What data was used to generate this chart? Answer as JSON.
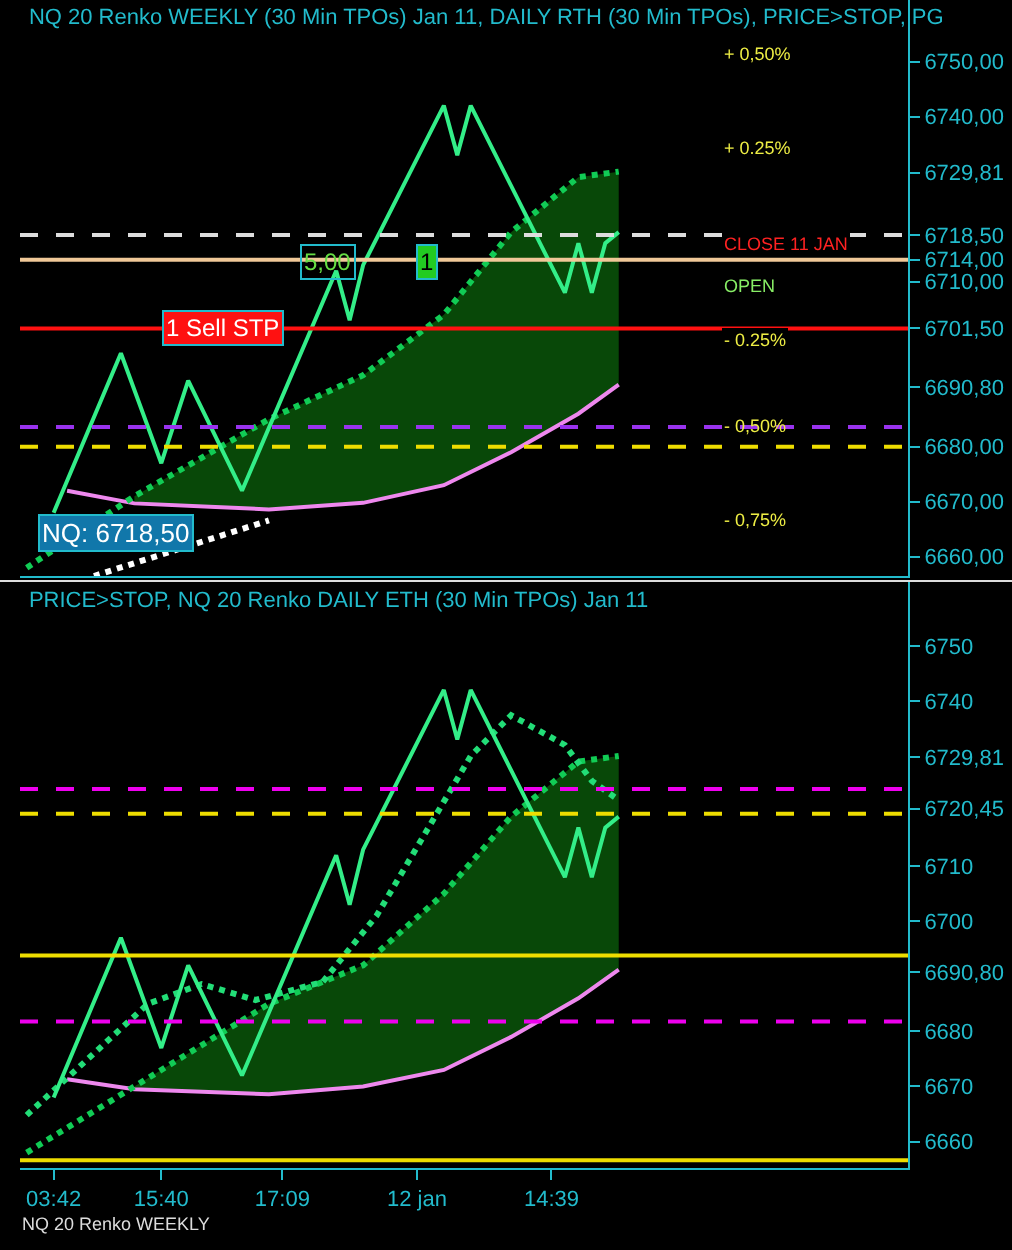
{
  "chart_data": [
    {
      "type": "line",
      "title": "NQ 20 Renko WEEKLY (30 Min TPOs) Jan 11, DAILY RTH (30 Min TPOs), PRICE>STOP, PG",
      "categories": [
        null,
        null,
        null,
        null,
        null,
        null,
        null,
        null,
        null,
        null,
        null,
        null,
        null,
        null,
        null,
        null,
        null,
        null,
        null,
        null,
        null,
        null,
        null,
        null,
        null,
        null,
        null,
        null,
        null,
        null,
        null,
        null,
        null,
        null,
        null,
        null,
        null,
        null,
        null,
        null,
        null,
        null,
        null,
        null,
        null,
        null,
        null,
        null,
        null,
        null,
        null,
        null,
        null,
        null,
        null,
        null,
        null,
        null,
        null,
        null,
        null,
        null,
        null,
        null,
        null,
        null
      ],
      "series": [
        {
          "type": "line",
          "color": "#ee88ee",
          "line_style": "solid",
          "values": [
            null,
            null,
            null,
            6672,
            null,
            null,
            null,
            null,
            6669.7,
            null,
            null,
            null,
            null,
            null,
            null,
            null,
            null,
            null,
            6668.6,
            null,
            null,
            null,
            null,
            null,
            null,
            6669.8,
            null,
            null,
            null,
            null,
            null,
            6673,
            null,
            null,
            null,
            null,
            6679,
            null,
            null,
            null,
            null,
            6686,
            null,
            null,
            6691.3,
            null,
            null,
            null,
            null,
            null,
            null,
            null,
            null,
            null,
            null,
            null,
            null,
            null,
            null,
            null,
            null,
            null,
            null,
            null,
            null,
            null
          ]
        },
        {
          "type": "line",
          "color": "#11cc55",
          "line_style": "dotted",
          "values": [
            6658,
            null,
            null,
            null,
            null,
            null,
            null,
            null,
            6671,
            null,
            null,
            null,
            null,
            null,
            null,
            null,
            null,
            null,
            6685,
            null,
            null,
            null,
            null,
            null,
            null,
            6693,
            null,
            null,
            null,
            null,
            null,
            6704,
            null,
            null,
            null,
            null,
            6719,
            null,
            null,
            null,
            null,
            6729,
            null,
            null,
            6730,
            null,
            null,
            null,
            null,
            null,
            null,
            null,
            null,
            null,
            null,
            null,
            null,
            null,
            null,
            null,
            null,
            null,
            null,
            null,
            null,
            null
          ],
          "lower": [
            null,
            null,
            null,
            null,
            null,
            null,
            null,
            null,
            6669.7,
            null,
            null,
            null,
            null,
            null,
            null,
            null,
            null,
            null,
            6668.6,
            null,
            null,
            null,
            null,
            null,
            null,
            6669.8,
            null,
            null,
            null,
            null,
            null,
            6673,
            null,
            null,
            null,
            null,
            6679,
            null,
            null,
            null,
            null,
            6686,
            null,
            null,
            6691.3,
            null,
            null,
            null,
            null,
            null,
            null,
            null,
            null,
            null,
            null,
            null,
            null,
            null,
            null,
            null,
            null,
            null,
            null,
            null,
            null,
            null
          ],
          "upper": [
            null,
            null,
            null,
            null,
            null,
            null,
            null,
            null,
            6671,
            null,
            null,
            null,
            null,
            null,
            null,
            null,
            null,
            null,
            6685,
            null,
            null,
            null,
            null,
            null,
            null,
            6693,
            null,
            null,
            null,
            null,
            null,
            6704,
            null,
            null,
            null,
            null,
            6719,
            null,
            null,
            null,
            null,
            6729,
            null,
            null,
            6730,
            null,
            null,
            null,
            null,
            null,
            null,
            null,
            null,
            null,
            null,
            null,
            null,
            null,
            null,
            null,
            null,
            null,
            null,
            null,
            null,
            null
          ]
        },
        {
          "type": "line",
          "color": "#ffffff",
          "line_style": "dotted",
          "values": [
            null,
            null,
            null,
            null,
            null,
            6656.5,
            null,
            null,
            null,
            null,
            null,
            null,
            null,
            null,
            null,
            null,
            null,
            null,
            6666.6,
            null,
            null,
            null,
            null,
            null,
            null,
            null,
            null,
            null,
            null,
            null,
            null,
            null,
            null,
            null,
            null,
            null,
            null,
            null,
            null,
            null,
            null,
            null,
            null,
            null,
            null,
            null,
            null,
            null,
            null,
            null,
            null,
            null,
            null,
            null,
            null,
            null,
            null,
            null,
            null,
            null,
            null,
            null,
            null,
            null,
            null,
            null
          ]
        },
        {
          "type": "line",
          "color": "#33ee88",
          "line_style": "solid",
          "values": [
            null,
            null,
            6668,
            null,
            null,
            null,
            null,
            6697,
            null,
            null,
            6677,
            null,
            6692,
            null,
            null,
            null,
            6672,
            null,
            null,
            null,
            null,
            null,
            null,
            6712,
            6703,
            6713,
            null,
            null,
            null,
            null,
            null,
            6742,
            6733,
            6742,
            null,
            null,
            null,
            null,
            null,
            null,
            6708,
            6717,
            6708,
            6717,
            6719,
            null,
            null,
            null,
            null,
            null,
            null,
            null,
            null,
            null,
            null,
            null,
            null,
            null,
            null,
            null,
            null,
            null,
            null,
            null,
            null,
            null
          ]
        }
      ],
      "ylim": [
        6656.5,
        6761.2
      ],
      "yticks": [
        {
          "value": 6660,
          "label": "6660,00"
        },
        {
          "value": 6670,
          "label": "6670,00"
        },
        {
          "value": 6680,
          "label": "6680,00"
        },
        {
          "value": 6690.8,
          "label": "6690,80"
        },
        {
          "value": 6701.5,
          "label": "6701,50"
        },
        {
          "value": 6710,
          "label": "6710,00"
        },
        {
          "value": 6714,
          "label": "6714,00"
        },
        {
          "value": 6718.5,
          "label": "6718,50"
        },
        {
          "value": 6729.81,
          "label": "6729,81"
        },
        {
          "value": 6740,
          "label": "6740,00"
        },
        {
          "value": 6750,
          "label": "6750,00"
        }
      ],
      "ref_lines": [
        {
          "axis": "y",
          "value": 6718.5,
          "color": "#dddddd",
          "line_style": "dashed"
        },
        {
          "axis": "y",
          "value": 6714,
          "color": "#f0c898",
          "line_style": "solid"
        },
        {
          "axis": "y",
          "value": 6701.5,
          "color": "#ff1111",
          "line_style": "solid",
          "label": "1 Sell STP"
        },
        {
          "axis": "y",
          "value": 6683.6,
          "color": "#9933ee",
          "line_style": "dashed"
        },
        {
          "axis": "y",
          "value": 6680,
          "color": "#eedd00",
          "line_style": "dashed"
        }
      ],
      "annotations": [
        "+ 0,50%",
        "+ 0.25%",
        "CLOSE 11 JAN",
        "OPEN",
        "- 0.25%",
        "- 0,50%",
        "- 0,75%",
        "NQ: 6718,50",
        "5,00",
        "1"
      ],
      "grid": false,
      "marker": "none",
      "tick_labels": "y"
    },
    {
      "type": "line",
      "title": "PRICE>STOP, NQ 20 Renko DAILY ETH (30 Min TPOs) Jan 11",
      "categories": [
        null,
        null,
        "03:42",
        null,
        null,
        null,
        null,
        null,
        null,
        null,
        "15:40",
        null,
        null,
        null,
        null,
        null,
        null,
        null,
        null,
        "17:09",
        null,
        null,
        null,
        null,
        null,
        null,
        null,
        null,
        null,
        "12 jan",
        null,
        null,
        null,
        null,
        null,
        null,
        null,
        null,
        null,
        "14:39",
        null,
        null,
        null,
        null,
        null,
        null,
        null,
        null,
        null,
        null,
        null,
        null,
        null,
        null,
        null,
        null,
        null,
        null,
        null,
        null,
        null,
        null,
        null,
        null,
        null,
        null
      ],
      "series": [
        {
          "type": "line",
          "color": "#ee88ee",
          "line_style": "solid",
          "values": [
            null,
            null,
            null,
            6671.3,
            null,
            null,
            null,
            null,
            6669.5,
            null,
            null,
            null,
            null,
            null,
            null,
            null,
            null,
            null,
            6668.6,
            null,
            null,
            null,
            null,
            null,
            null,
            6670,
            null,
            null,
            null,
            null,
            null,
            6673,
            null,
            null,
            null,
            null,
            6679,
            null,
            null,
            null,
            null,
            6686,
            null,
            null,
            6691.2,
            null,
            null,
            null,
            null,
            null,
            null,
            null,
            null,
            null,
            null,
            null,
            null,
            null,
            null,
            null,
            null,
            null,
            null,
            null,
            null,
            null
          ]
        },
        {
          "type": "line",
          "color": "#11cc55",
          "line_style": "dotted",
          "values": [
            6658,
            null,
            null,
            null,
            null,
            null,
            null,
            null,
            6670,
            null,
            null,
            null,
            null,
            null,
            null,
            null,
            null,
            null,
            6685,
            null,
            null,
            null,
            null,
            null,
            null,
            6692,
            null,
            null,
            null,
            null,
            null,
            6705,
            null,
            null,
            null,
            null,
            6719,
            null,
            null,
            null,
            null,
            6729,
            null,
            null,
            6730,
            null,
            null,
            null,
            null,
            null,
            null,
            null,
            null,
            null,
            null,
            null,
            null,
            null,
            null,
            null,
            null,
            null,
            null,
            null,
            null,
            null
          ],
          "lower": [
            null,
            null,
            null,
            null,
            null,
            null,
            null,
            null,
            6669.5,
            null,
            null,
            null,
            null,
            null,
            null,
            null,
            null,
            null,
            6668.6,
            null,
            null,
            null,
            null,
            null,
            null,
            6670,
            null,
            null,
            null,
            null,
            null,
            6673,
            null,
            null,
            null,
            null,
            6679,
            null,
            null,
            null,
            null,
            6686,
            null,
            null,
            6691.2,
            null,
            null,
            null,
            null,
            null,
            null,
            null,
            null,
            null,
            null,
            null,
            null,
            null,
            null,
            null,
            null,
            null,
            null,
            null,
            null,
            null
          ],
          "upper": [
            null,
            null,
            null,
            null,
            null,
            null,
            null,
            null,
            6670,
            null,
            null,
            null,
            null,
            null,
            null,
            null,
            null,
            null,
            6685,
            null,
            null,
            null,
            null,
            null,
            null,
            6692,
            null,
            null,
            null,
            null,
            null,
            6705,
            null,
            null,
            null,
            null,
            6719,
            null,
            null,
            null,
            null,
            6729,
            null,
            null,
            6730,
            null,
            null,
            null,
            null,
            null,
            null,
            null,
            null,
            null,
            null,
            null,
            null,
            null,
            null,
            null,
            null,
            null,
            null,
            null,
            null,
            null
          ]
        },
        {
          "type": "line",
          "color": "#22dd77",
          "line_style": "dotted",
          "values": [
            6664.8,
            null,
            null,
            null,
            null,
            null,
            null,
            null,
            null,
            6685,
            null,
            null,
            null,
            6688.6,
            null,
            null,
            null,
            6685.7,
            null,
            null,
            null,
            null,
            6689,
            null,
            null,
            null,
            6701,
            null,
            null,
            null,
            null,
            null,
            null,
            6730,
            null,
            null,
            6737.4,
            null,
            null,
            null,
            6732,
            null,
            6725.5,
            null,
            6722,
            null,
            null,
            null,
            null,
            null,
            null,
            null,
            null,
            null,
            null,
            null,
            null,
            null,
            null,
            null,
            null,
            null,
            null,
            null,
            null,
            null
          ]
        },
        {
          "type": "line",
          "color": "#33ee88",
          "line_style": "solid",
          "values": [
            null,
            null,
            6668,
            null,
            null,
            null,
            null,
            6697,
            null,
            null,
            6677,
            null,
            6692,
            null,
            null,
            null,
            6672,
            null,
            null,
            null,
            null,
            null,
            null,
            6712,
            6703,
            6713,
            null,
            null,
            null,
            null,
            null,
            6742,
            6733,
            6742,
            null,
            null,
            null,
            null,
            null,
            null,
            6708,
            6717,
            6708,
            6717,
            6719,
            null,
            null,
            null,
            null,
            null,
            null,
            null,
            null,
            null,
            null,
            null,
            null,
            null,
            null,
            null,
            null,
            null,
            null,
            null,
            null,
            null
          ]
        }
      ],
      "ylim": [
        6655.2,
        6761.6
      ],
      "yticks": [
        6660,
        6670,
        6680,
        {
          "value": 6690.8,
          "label": "6690,80"
        },
        6700,
        6710,
        {
          "value": 6720.45,
          "label": "6720,45"
        },
        {
          "value": 6729.81,
          "label": "6729,81"
        },
        6740,
        6750
      ],
      "ref_lines": [
        {
          "axis": "y",
          "value": 6693.8,
          "color": "#eedd00",
          "line_style": "solid"
        },
        {
          "axis": "y",
          "value": 6656.6,
          "color": "#eedd00",
          "line_style": "solid"
        },
        {
          "axis": "y",
          "value": 6681.8,
          "color": "#ee00ee",
          "line_style": "dashed"
        },
        {
          "axis": "y",
          "value": 6724,
          "color": "#ee00ee",
          "line_style": "dashed"
        },
        {
          "axis": "y",
          "value": 6719.5,
          "color": "#eedd00",
          "line_style": "dashed"
        }
      ],
      "annotations": [
        "NQ 20 Renko WEEKLY"
      ],
      "grid": false,
      "marker": "none"
    }
  ]
}
